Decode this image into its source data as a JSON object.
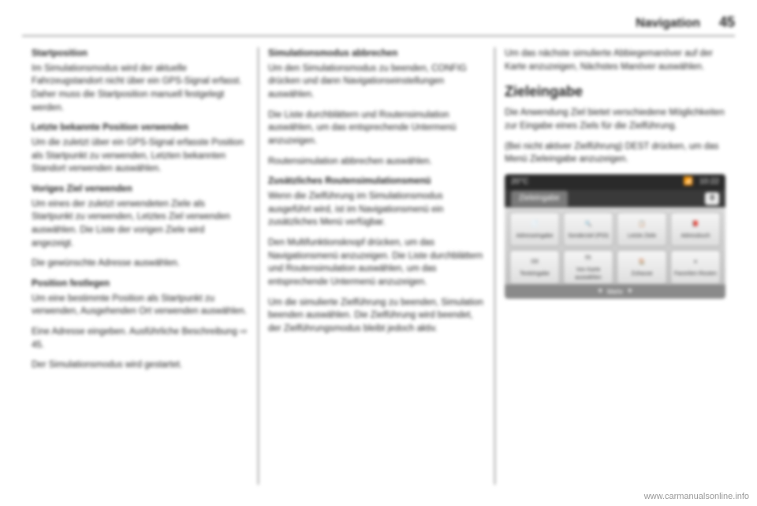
{
  "header": {
    "title": "Navigation",
    "pagenum": "45"
  },
  "col1": {
    "h_startpos": "Startposition",
    "p_startpos": "Im Simulationsmodus wird der aktuelle Fahrzeugstandort nicht über ein GPS-Signal erfasst. Daher muss die Startposition manuell festgelegt werden.",
    "h_lastknown": "Letzte bekannte Position verwenden",
    "p_lastknown": "Um die zuletzt über ein GPS-Signal erfasste Position als Startpunkt zu verwenden, Letzten bekannten Standort verwenden auswählen.",
    "h_prevdest": "Voriges Ziel verwenden",
    "p_prevdest": "Um eines der zuletzt verwendeten Ziele als Startpunkt zu verwenden, Letztes Ziel verwenden auswählen. Die Liste der vorigen Ziele wird angezeigt.",
    "p_selectaddr": "Die gewünschte Adresse auswählen.",
    "h_setpos": "Position festlegen",
    "p_setpos": "Um eine bestimmte Position als Startpunkt zu verwenden, Ausgehenden Ort verwenden auswählen.",
    "p_enteraddr": "Eine Adresse eingeben. Ausführliche Beschreibung ⇨ 45.",
    "p_simstart": "Der Simulationsmodus wird gestartet."
  },
  "col2": {
    "h_cancel": "Simulationsmodus abbrechen",
    "p_cancel1": "Um den Simulationsmodus zu beenden, CONFIG drücken und dann Navigationseinstellungen auswählen.",
    "p_cancel2": "Die Liste durchblättern und Routensimulation auswählen, um das entsprechende Untermenü anzuzeigen.",
    "p_cancel3": "Routensimulation abbrechen auswählen.",
    "h_extra": "Zusätzliches Routensimulationsmenü",
    "p_extra1": "Wenn die Zielführung im Simulationsmodus ausgeführt wird, ist im Navigationsmenü ein zusätzliches Menü verfügbar.",
    "p_extra2": "Den Multifunktionsknopf drücken, um das Navigationsmenü anzuzeigen. Die Liste durchblättern und Routensimulation auswählen, um das entsprechende Untermenü anzuzeigen.",
    "p_extra3": "Um die simulierte Zielführung zu beenden, Simulation beenden auswählen. Die Zielführung wird beendet, der Zielführungsmodus bleibt jedoch aktiv."
  },
  "col3": {
    "p_next": "Um das nächste simulierte Abbiegemanöver auf der Karte anzuzeigen, Nächstes Manöver auswählen.",
    "h_zieleingabe": "Zieleingabe",
    "p_ziel1": "Die Anwendung Ziel bietet verschiedene Möglichkeiten zur Eingabe eines Ziels für die Zielführung.",
    "p_ziel2": "(Bei nicht aktiver Zielführung) DEST drücken, um das Menü Zieleingabe anzuzeigen."
  },
  "shot": {
    "status": {
      "temp": "20°C",
      "time": "10:22",
      "signal_icon": "📶"
    },
    "tab": "Zieleingabe",
    "count": "0",
    "tiles": [
      {
        "name": "tile-address",
        "label": "Adresseingabe",
        "icon": "📄"
      },
      {
        "name": "tile-poi",
        "label": "Sonderziel (POI)",
        "icon": "🔍"
      },
      {
        "name": "tile-recent",
        "label": "Letzte Ziele",
        "icon": "📋"
      },
      {
        "name": "tile-addrbook",
        "label": "Adressbuch",
        "icon": "📕"
      },
      {
        "name": "tile-textentry",
        "label": "Texteingabe",
        "icon": "⌨"
      },
      {
        "name": "tile-frommap",
        "label": "Von Karte auswählen",
        "icon": "🗺"
      },
      {
        "name": "tile-home",
        "label": "Zuhause",
        "icon": "🏠"
      },
      {
        "name": "tile-favroutes",
        "label": "Favoriten-Routen",
        "icon": "★"
      }
    ],
    "footer": "Mehr"
  },
  "watermark": "www.carmanualsonline.info"
}
